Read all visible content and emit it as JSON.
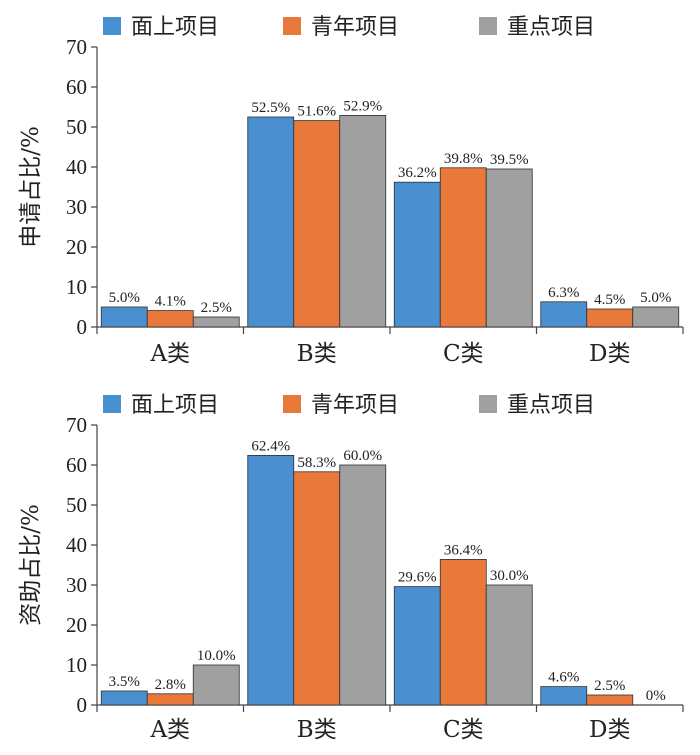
{
  "colors": {
    "面上项目": "#4a8fd0",
    "青年项目": "#e8793a",
    "重点项目": "#a0a0a0"
  },
  "chart_data": [
    {
      "type": "bar",
      "categories": [
        "A类",
        "B类",
        "C类",
        "D类"
      ],
      "ylabel": "申请占比/%",
      "ylim": [
        0,
        70
      ],
      "yticks": [
        0,
        10,
        20,
        30,
        40,
        50,
        60,
        70
      ],
      "legend_position": "top",
      "grid": false,
      "series": [
        {
          "name": "面上项目",
          "values": [
            5.0,
            52.5,
            36.2,
            6.3
          ],
          "labels": [
            "5.0%",
            "52.5%",
            "36.2%",
            "6.3%"
          ]
        },
        {
          "name": "青年项目",
          "values": [
            4.1,
            51.6,
            39.8,
            4.5
          ],
          "labels": [
            "4.1%",
            "51.6%",
            "39.8%",
            "4.5%"
          ]
        },
        {
          "name": "重点项目",
          "values": [
            2.5,
            52.9,
            39.5,
            5.0
          ],
          "labels": [
            "2.5%",
            "52.9%",
            "39.5%",
            "5.0%"
          ]
        }
      ]
    },
    {
      "type": "bar",
      "categories": [
        "A类",
        "B类",
        "C类",
        "D类"
      ],
      "ylabel": "资助占比/%",
      "ylim": [
        0,
        70
      ],
      "yticks": [
        0,
        10,
        20,
        30,
        40,
        50,
        60,
        70
      ],
      "legend_position": "top",
      "grid": false,
      "series": [
        {
          "name": "面上项目",
          "values": [
            3.5,
            62.4,
            29.6,
            4.6
          ],
          "labels": [
            "3.5%",
            "62.4%",
            "29.6%",
            "4.6%"
          ]
        },
        {
          "name": "青年项目",
          "values": [
            2.8,
            58.3,
            36.4,
            2.5
          ],
          "labels": [
            "2.8%",
            "58.3%",
            "36.4%",
            "2.5%"
          ]
        },
        {
          "name": "重点项目",
          "values": [
            10.0,
            60.0,
            30.0,
            0
          ],
          "labels": [
            "10.0%",
            "60.0%",
            "30.0%",
            "0%"
          ]
        }
      ]
    }
  ]
}
